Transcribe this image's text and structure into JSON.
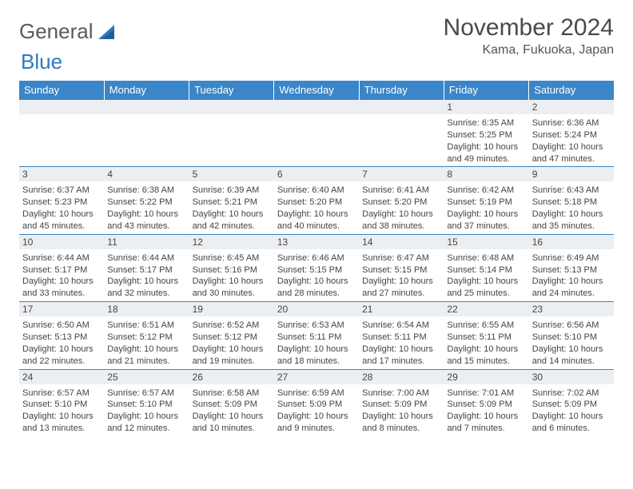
{
  "brand": {
    "word1": "General",
    "word2": "Blue"
  },
  "colors": {
    "header_bg": "#3a86c8",
    "header_text": "#ffffff",
    "daynum_bg": "#eceff2",
    "border": "#3a86c8",
    "text": "#444444",
    "title": "#4a4a4a"
  },
  "title": "November 2024",
  "location": "Kama, Fukuoka, Japan",
  "day_headers": [
    "Sunday",
    "Monday",
    "Tuesday",
    "Wednesday",
    "Thursday",
    "Friday",
    "Saturday"
  ],
  "weeks": [
    [
      null,
      null,
      null,
      null,
      null,
      {
        "n": "1",
        "sr": "Sunrise: 6:35 AM",
        "ss": "Sunset: 5:25 PM",
        "dl": "Daylight: 10 hours and 49 minutes."
      },
      {
        "n": "2",
        "sr": "Sunrise: 6:36 AM",
        "ss": "Sunset: 5:24 PM",
        "dl": "Daylight: 10 hours and 47 minutes."
      }
    ],
    [
      {
        "n": "3",
        "sr": "Sunrise: 6:37 AM",
        "ss": "Sunset: 5:23 PM",
        "dl": "Daylight: 10 hours and 45 minutes."
      },
      {
        "n": "4",
        "sr": "Sunrise: 6:38 AM",
        "ss": "Sunset: 5:22 PM",
        "dl": "Daylight: 10 hours and 43 minutes."
      },
      {
        "n": "5",
        "sr": "Sunrise: 6:39 AM",
        "ss": "Sunset: 5:21 PM",
        "dl": "Daylight: 10 hours and 42 minutes."
      },
      {
        "n": "6",
        "sr": "Sunrise: 6:40 AM",
        "ss": "Sunset: 5:20 PM",
        "dl": "Daylight: 10 hours and 40 minutes."
      },
      {
        "n": "7",
        "sr": "Sunrise: 6:41 AM",
        "ss": "Sunset: 5:20 PM",
        "dl": "Daylight: 10 hours and 38 minutes."
      },
      {
        "n": "8",
        "sr": "Sunrise: 6:42 AM",
        "ss": "Sunset: 5:19 PM",
        "dl": "Daylight: 10 hours and 37 minutes."
      },
      {
        "n": "9",
        "sr": "Sunrise: 6:43 AM",
        "ss": "Sunset: 5:18 PM",
        "dl": "Daylight: 10 hours and 35 minutes."
      }
    ],
    [
      {
        "n": "10",
        "sr": "Sunrise: 6:44 AM",
        "ss": "Sunset: 5:17 PM",
        "dl": "Daylight: 10 hours and 33 minutes."
      },
      {
        "n": "11",
        "sr": "Sunrise: 6:44 AM",
        "ss": "Sunset: 5:17 PM",
        "dl": "Daylight: 10 hours and 32 minutes."
      },
      {
        "n": "12",
        "sr": "Sunrise: 6:45 AM",
        "ss": "Sunset: 5:16 PM",
        "dl": "Daylight: 10 hours and 30 minutes."
      },
      {
        "n": "13",
        "sr": "Sunrise: 6:46 AM",
        "ss": "Sunset: 5:15 PM",
        "dl": "Daylight: 10 hours and 28 minutes."
      },
      {
        "n": "14",
        "sr": "Sunrise: 6:47 AM",
        "ss": "Sunset: 5:15 PM",
        "dl": "Daylight: 10 hours and 27 minutes."
      },
      {
        "n": "15",
        "sr": "Sunrise: 6:48 AM",
        "ss": "Sunset: 5:14 PM",
        "dl": "Daylight: 10 hours and 25 minutes."
      },
      {
        "n": "16",
        "sr": "Sunrise: 6:49 AM",
        "ss": "Sunset: 5:13 PM",
        "dl": "Daylight: 10 hours and 24 minutes."
      }
    ],
    [
      {
        "n": "17",
        "sr": "Sunrise: 6:50 AM",
        "ss": "Sunset: 5:13 PM",
        "dl": "Daylight: 10 hours and 22 minutes."
      },
      {
        "n": "18",
        "sr": "Sunrise: 6:51 AM",
        "ss": "Sunset: 5:12 PM",
        "dl": "Daylight: 10 hours and 21 minutes."
      },
      {
        "n": "19",
        "sr": "Sunrise: 6:52 AM",
        "ss": "Sunset: 5:12 PM",
        "dl": "Daylight: 10 hours and 19 minutes."
      },
      {
        "n": "20",
        "sr": "Sunrise: 6:53 AM",
        "ss": "Sunset: 5:11 PM",
        "dl": "Daylight: 10 hours and 18 minutes."
      },
      {
        "n": "21",
        "sr": "Sunrise: 6:54 AM",
        "ss": "Sunset: 5:11 PM",
        "dl": "Daylight: 10 hours and 17 minutes."
      },
      {
        "n": "22",
        "sr": "Sunrise: 6:55 AM",
        "ss": "Sunset: 5:11 PM",
        "dl": "Daylight: 10 hours and 15 minutes."
      },
      {
        "n": "23",
        "sr": "Sunrise: 6:56 AM",
        "ss": "Sunset: 5:10 PM",
        "dl": "Daylight: 10 hours and 14 minutes."
      }
    ],
    [
      {
        "n": "24",
        "sr": "Sunrise: 6:57 AM",
        "ss": "Sunset: 5:10 PM",
        "dl": "Daylight: 10 hours and 13 minutes."
      },
      {
        "n": "25",
        "sr": "Sunrise: 6:57 AM",
        "ss": "Sunset: 5:10 PM",
        "dl": "Daylight: 10 hours and 12 minutes."
      },
      {
        "n": "26",
        "sr": "Sunrise: 6:58 AM",
        "ss": "Sunset: 5:09 PM",
        "dl": "Daylight: 10 hours and 10 minutes."
      },
      {
        "n": "27",
        "sr": "Sunrise: 6:59 AM",
        "ss": "Sunset: 5:09 PM",
        "dl": "Daylight: 10 hours and 9 minutes."
      },
      {
        "n": "28",
        "sr": "Sunrise: 7:00 AM",
        "ss": "Sunset: 5:09 PM",
        "dl": "Daylight: 10 hours and 8 minutes."
      },
      {
        "n": "29",
        "sr": "Sunrise: 7:01 AM",
        "ss": "Sunset: 5:09 PM",
        "dl": "Daylight: 10 hours and 7 minutes."
      },
      {
        "n": "30",
        "sr": "Sunrise: 7:02 AM",
        "ss": "Sunset: 5:09 PM",
        "dl": "Daylight: 10 hours and 6 minutes."
      }
    ]
  ]
}
